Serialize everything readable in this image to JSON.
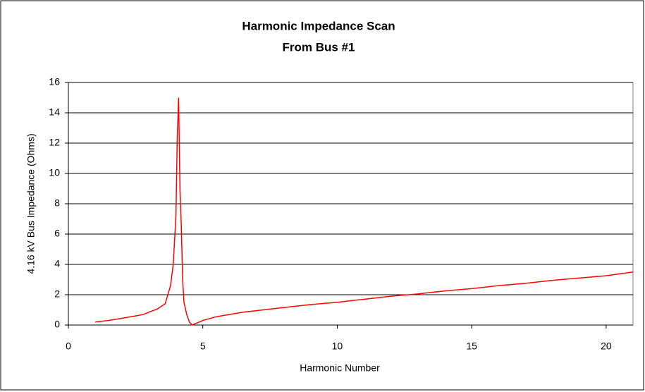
{
  "chart_data": {
    "type": "line",
    "title": [
      "Harmonic Impedance Scan",
      "From Bus #1"
    ],
    "xlabel": "Harmonic Number",
    "ylabel": "4.16 kV Bus Impedance (Ohms)",
    "xlim": [
      0,
      21
    ],
    "xticks": [
      0,
      5,
      10,
      15,
      20
    ],
    "ylim": [
      0,
      16
    ],
    "yticks": [
      0,
      2,
      4,
      6,
      8,
      10,
      12,
      14,
      16
    ],
    "grid": true,
    "series": [
      {
        "name": "Impedance",
        "color": "#ff0000",
        "x": [
          1,
          1.5,
          2,
          2.5,
          2.8,
          3,
          3.3,
          3.6,
          3.8,
          3.9,
          4.0,
          4.05,
          4.1,
          4.15,
          4.2,
          4.25,
          4.3,
          4.4,
          4.5,
          4.6,
          4.8,
          5,
          5.5,
          6,
          6.5,
          7,
          8,
          9,
          10,
          11,
          12,
          13,
          14,
          15,
          16,
          17,
          18,
          19,
          20,
          21
        ],
        "values": [
          0.2,
          0.3,
          0.45,
          0.6,
          0.7,
          0.85,
          1.05,
          1.4,
          2.6,
          4.0,
          7.2,
          12.4,
          15.0,
          9.0,
          6.5,
          3.0,
          1.5,
          0.7,
          0.2,
          0,
          0.15,
          0.3,
          0.55,
          0.7,
          0.85,
          0.95,
          1.15,
          1.35,
          1.5,
          1.7,
          1.9,
          2.05,
          2.25,
          2.4,
          2.6,
          2.75,
          2.95,
          3.1,
          3.25,
          3.5
        ]
      }
    ]
  }
}
